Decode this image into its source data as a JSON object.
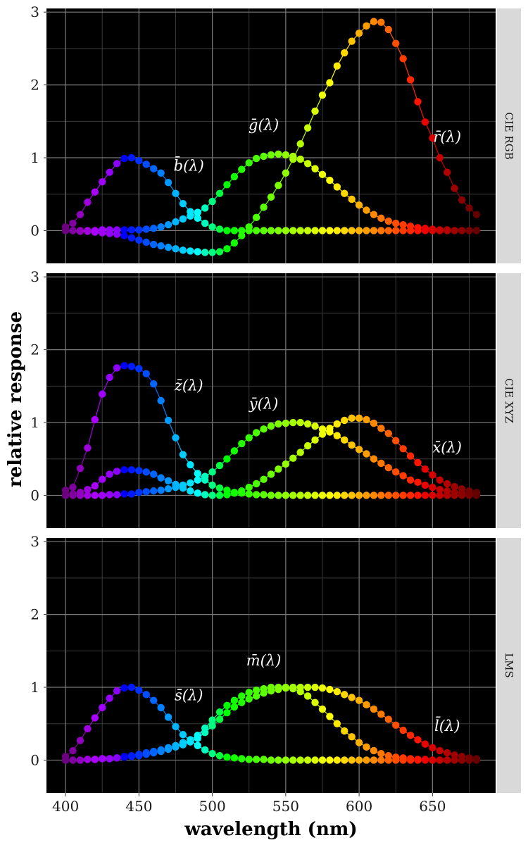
{
  "chart_data": {
    "type": "line",
    "xlabel": "wavelength (nm)",
    "ylabel": "relative response",
    "xlim": [
      387,
      693
    ],
    "ylim": [
      -0.45,
      3.05
    ],
    "x_ticks": [
      400,
      450,
      500,
      550,
      600,
      650
    ],
    "y_ticks": [
      0,
      1,
      2,
      3
    ],
    "grid": true,
    "background": "#000000",
    "x": [
      400,
      405,
      410,
      415,
      420,
      425,
      430,
      435,
      440,
      445,
      450,
      455,
      460,
      465,
      470,
      475,
      480,
      485,
      490,
      495,
      500,
      505,
      510,
      515,
      520,
      525,
      530,
      535,
      540,
      545,
      550,
      555,
      560,
      565,
      570,
      575,
      580,
      585,
      590,
      595,
      600,
      605,
      610,
      615,
      620,
      625,
      630,
      635,
      640,
      645,
      650,
      655,
      660,
      665,
      670,
      675,
      680
    ],
    "panels": [
      {
        "strip": "CIE RGB",
        "series": [
          {
            "name": "r̄(λ)",
            "values": [
              0.0,
              0.0,
              -0.01,
              -0.01,
              -0.02,
              -0.03,
              -0.04,
              -0.05,
              -0.07,
              -0.1,
              -0.13,
              -0.16,
              -0.19,
              -0.21,
              -0.23,
              -0.25,
              -0.27,
              -0.28,
              -0.29,
              -0.3,
              -0.3,
              -0.29,
              -0.25,
              -0.17,
              -0.07,
              0.05,
              0.18,
              0.32,
              0.46,
              0.62,
              0.79,
              0.98,
              1.19,
              1.41,
              1.64,
              1.86,
              2.03,
              2.26,
              2.44,
              2.6,
              2.71,
              2.81,
              2.87,
              2.86,
              2.76,
              2.57,
              2.36,
              2.07,
              1.77,
              1.49,
              1.27,
              1.0,
              0.8,
              0.58,
              0.42,
              0.31,
              0.22
            ]
          },
          {
            "name": "ḡ(λ)",
            "values": [
              0.0,
              0.0,
              0.0,
              0.0,
              0.0,
              0.01,
              0.01,
              0.01,
              0.01,
              0.01,
              0.01,
              0.02,
              0.03,
              0.05,
              0.08,
              0.12,
              0.16,
              0.2,
              0.25,
              0.31,
              0.4,
              0.51,
              0.63,
              0.74,
              0.84,
              0.93,
              0.99,
              1.02,
              1.04,
              1.05,
              1.04,
              1.02,
              0.98,
              0.92,
              0.85,
              0.77,
              0.69,
              0.6,
              0.51,
              0.43,
              0.35,
              0.28,
              0.22,
              0.17,
              0.13,
              0.1,
              0.08,
              0.06,
              0.04,
              0.03,
              0.02,
              0.01,
              0.01,
              0.0,
              0.0,
              0.0,
              0.0
            ]
          },
          {
            "name": "b̄(λ)",
            "values": [
              0.05,
              0.1,
              0.22,
              0.39,
              0.53,
              0.67,
              0.8,
              0.92,
              0.99,
              1.0,
              0.96,
              0.91,
              0.85,
              0.79,
              0.66,
              0.51,
              0.37,
              0.26,
              0.17,
              0.1,
              0.05,
              0.02,
              0.0,
              0.0,
              0.0,
              0.0,
              0.0,
              0.0,
              0.0,
              0.0,
              0.0,
              0.0,
              0.0,
              0.0,
              0.0,
              0.0,
              0.0,
              0.0,
              0.0,
              0.0,
              0.0,
              0.0,
              0.0,
              0.0,
              0.0,
              0.0,
              0.0,
              0.0,
              0.0,
              0.0,
              0.0,
              0.0,
              0.0,
              0.0,
              0.0,
              0.0,
              0.0
            ]
          }
        ],
        "labels": [
          {
            "text": "b̄(λ)",
            "x": 484,
            "y": 0.82
          },
          {
            "text": "ḡ(λ)",
            "x": 535,
            "y": 1.38
          },
          {
            "text": "r̄(λ)",
            "x": 660,
            "y": 1.22
          }
        ]
      },
      {
        "strip": "CIE XYZ",
        "series": [
          {
            "name": "x̄(λ)",
            "values": [
              0.01,
              0.02,
              0.04,
              0.08,
              0.13,
              0.22,
              0.29,
              0.33,
              0.35,
              0.35,
              0.34,
              0.32,
              0.29,
              0.24,
              0.2,
              0.15,
              0.1,
              0.06,
              0.03,
              0.01,
              0.0,
              0.0,
              0.01,
              0.03,
              0.06,
              0.11,
              0.16,
              0.22,
              0.29,
              0.36,
              0.43,
              0.51,
              0.59,
              0.68,
              0.76,
              0.84,
              0.92,
              0.98,
              1.03,
              1.06,
              1.06,
              1.04,
              0.99,
              0.92,
              0.85,
              0.75,
              0.64,
              0.54,
              0.45,
              0.36,
              0.28,
              0.21,
              0.16,
              0.12,
              0.09,
              0.06,
              0.04
            ]
          },
          {
            "name": "ȳ(λ)",
            "values": [
              0.0,
              0.0,
              0.0,
              0.0,
              0.0,
              0.0,
              0.01,
              0.01,
              0.02,
              0.02,
              0.04,
              0.05,
              0.06,
              0.07,
              0.09,
              0.11,
              0.14,
              0.17,
              0.21,
              0.26,
              0.32,
              0.41,
              0.5,
              0.61,
              0.71,
              0.79,
              0.86,
              0.91,
              0.95,
              0.98,
              0.99,
              1.0,
              1.0,
              0.98,
              0.95,
              0.91,
              0.87,
              0.82,
              0.76,
              0.69,
              0.63,
              0.57,
              0.5,
              0.44,
              0.38,
              0.32,
              0.27,
              0.21,
              0.18,
              0.14,
              0.11,
              0.08,
              0.06,
              0.04,
              0.03,
              0.02,
              0.01
            ]
          },
          {
            "name": "z̄(λ)",
            "values": [
              0.07,
              0.11,
              0.37,
              0.65,
              1.04,
              1.39,
              1.62,
              1.75,
              1.78,
              1.77,
              1.74,
              1.67,
              1.53,
              1.3,
              1.03,
              0.79,
              0.56,
              0.42,
              0.3,
              0.21,
              0.14,
              0.1,
              0.07,
              0.04,
              0.03,
              0.02,
              0.01,
              0.01,
              0.0,
              0.0,
              0.0,
              0.0,
              0.0,
              0.0,
              0.0,
              0.0,
              0.0,
              0.0,
              0.0,
              0.0,
              0.0,
              0.0,
              0.0,
              0.0,
              0.0,
              0.0,
              0.0,
              0.0,
              0.0,
              0.0,
              0.0,
              0.0,
              0.0,
              0.0,
              0.0,
              0.0,
              0.0
            ]
          }
        ],
        "labels": [
          {
            "text": "z̄(λ)",
            "x": 484,
            "y": 1.44
          },
          {
            "text": "ȳ(λ)",
            "x": 535,
            "y": 1.19
          },
          {
            "text": "x̄(λ)",
            "x": 660,
            "y": 0.59
          }
        ]
      },
      {
        "strip": "LMS",
        "series": [
          {
            "name": "l̄(λ)",
            "values": [
              0.0,
              0.0,
              0.0,
              0.01,
              0.01,
              0.02,
              0.02,
              0.03,
              0.04,
              0.05,
              0.06,
              0.08,
              0.1,
              0.12,
              0.15,
              0.18,
              0.21,
              0.25,
              0.3,
              0.38,
              0.47,
              0.56,
              0.65,
              0.73,
              0.79,
              0.84,
              0.88,
              0.92,
              0.95,
              0.97,
              0.99,
              1.0,
              1.0,
              1.0,
              1.0,
              0.99,
              0.97,
              0.94,
              0.9,
              0.86,
              0.82,
              0.76,
              0.7,
              0.63,
              0.56,
              0.48,
              0.41,
              0.34,
              0.28,
              0.22,
              0.17,
              0.13,
              0.1,
              0.07,
              0.05,
              0.03,
              0.02
            ]
          },
          {
            "name": "m̄(λ)",
            "values": [
              0.0,
              0.0,
              0.0,
              0.01,
              0.01,
              0.02,
              0.02,
              0.03,
              0.05,
              0.06,
              0.08,
              0.1,
              0.12,
              0.14,
              0.17,
              0.2,
              0.24,
              0.28,
              0.34,
              0.44,
              0.55,
              0.66,
              0.75,
              0.82,
              0.88,
              0.93,
              0.96,
              0.98,
              1.0,
              1.0,
              1.0,
              0.98,
              0.94,
              0.88,
              0.79,
              0.7,
              0.6,
              0.5,
              0.4,
              0.32,
              0.24,
              0.18,
              0.13,
              0.09,
              0.06,
              0.04,
              0.03,
              0.02,
              0.01,
              0.01,
              0.0,
              0.0,
              0.0,
              0.0,
              0.0,
              0.0,
              0.0
            ]
          },
          {
            "name": "s̄(λ)",
            "values": [
              0.05,
              0.13,
              0.27,
              0.43,
              0.58,
              0.72,
              0.85,
              0.95,
              0.99,
              1.0,
              0.96,
              0.9,
              0.82,
              0.72,
              0.59,
              0.46,
              0.35,
              0.27,
              0.2,
              0.14,
              0.09,
              0.06,
              0.04,
              0.03,
              0.02,
              0.01,
              0.01,
              0.01,
              0.0,
              0.0,
              0.0,
              0.0,
              0.0,
              0.0,
              0.0,
              0.0,
              0.0,
              0.0,
              0.0,
              0.0,
              0.0,
              0.0,
              0.0,
              0.0,
              0.0,
              0.0,
              0.0,
              0.0,
              0.0,
              0.0,
              0.0,
              0.0,
              0.0,
              0.0,
              0.0,
              0.0,
              0.0
            ]
          }
        ],
        "labels": [
          {
            "text": "s̄(λ)",
            "x": 484,
            "y": 0.82
          },
          {
            "text": "m̄(λ)",
            "x": 535,
            "y": 1.3
          },
          {
            "text": "l̄(λ)",
            "x": 660,
            "y": 0.4
          }
        ]
      }
    ]
  }
}
